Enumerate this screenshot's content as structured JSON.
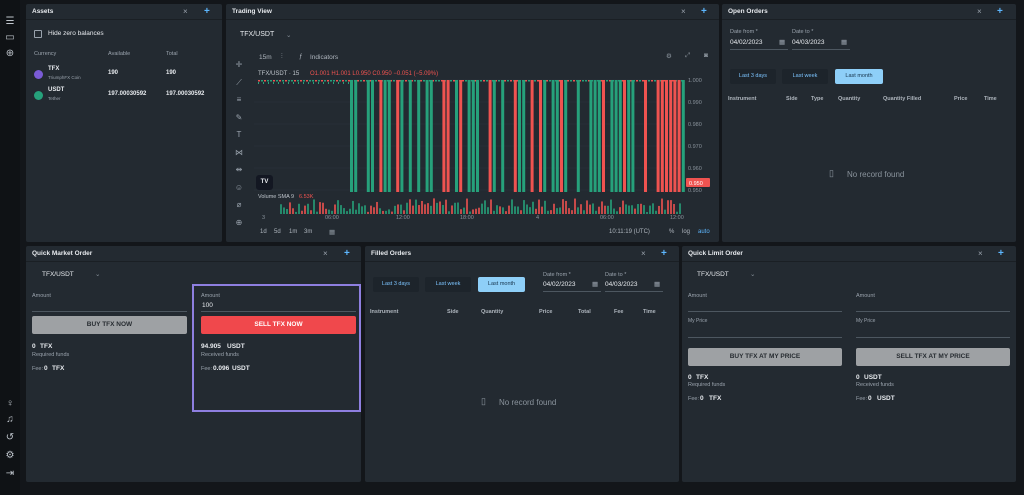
{
  "assets": {
    "title": "Assets",
    "hide_zero_label": "Hide zero balances",
    "columns": [
      "Currency",
      "Available",
      "Total"
    ],
    "rows": [
      {
        "symbol": "TFX",
        "name": "TriumphFX Coin",
        "available": "190",
        "total": "190"
      },
      {
        "symbol": "USDT",
        "name": "Tether",
        "available": "197.00030592",
        "total": "197.00030592"
      }
    ]
  },
  "trading_view": {
    "title": "Trading View",
    "pair": "TFX/USDT",
    "interval": "15m",
    "indicators_label": "Indicators",
    "legend_pair": "TFX/USDT · 15",
    "legend_ohlc": "O1.001 H1.001 L0.950 C0.950 −0.051 (−5.09%)",
    "volume_label": "Volume SMA 9",
    "volume_value": "6.53K",
    "price_ticks": [
      "1.000",
      "0.990",
      "0.980",
      "0.970",
      "0.960",
      "0.950"
    ],
    "price_tag": "0.950",
    "time_ticks": [
      "3",
      "06:00",
      "12:00",
      "18:00",
      "4",
      "06:00",
      "12:00"
    ],
    "ranges": [
      "1d",
      "5d",
      "1m",
      "3m"
    ],
    "clock": "10:11:19 (UTC)",
    "pct_label": "%",
    "log_label": "log",
    "auto_label": "auto",
    "logo": "TV"
  },
  "open_orders": {
    "title": "Open Orders",
    "date_from_label": "Date from *",
    "date_from": "04/02/2023",
    "date_to_label": "Date to *",
    "date_to": "04/03/2023",
    "tabs": [
      "Last 3 days",
      "Last week",
      "Last month"
    ],
    "columns": [
      "Instrument",
      "Side",
      "Type",
      "Quantity",
      "Quantity Filled",
      "Price",
      "Time"
    ],
    "empty": "No record found"
  },
  "quick_market": {
    "title": "Quick Market Order",
    "pair": "TFX/USDT",
    "buy": {
      "amount_label": "Amount",
      "amount": "",
      "button": "BUY TFX NOW",
      "funds_value": "0",
      "funds_unit": "TFX",
      "funds_label": "Required funds",
      "fee_label": "Fee:",
      "fee_value": "0",
      "fee_unit": "TFX"
    },
    "sell": {
      "amount_label": "Amount",
      "amount": "100",
      "button": "SELL TFX NOW",
      "funds_value": "94.905",
      "funds_unit": "USDT",
      "funds_label": "Received funds",
      "fee_label": "Fee:",
      "fee_value": "0.096",
      "fee_unit": "USDT"
    }
  },
  "filled_orders": {
    "title": "Filled Orders",
    "tabs": [
      "Last 3 days",
      "Last week",
      "Last month"
    ],
    "date_from_label": "Date from *",
    "date_from": "04/02/2023",
    "date_to_label": "Date to *",
    "date_to": "04/03/2023",
    "columns": [
      "Instrument",
      "Side",
      "Quantity",
      "Price",
      "Total",
      "Fee",
      "Time"
    ],
    "empty": "No record found"
  },
  "quick_limit": {
    "title": "Quick Limit Order",
    "pair": "TFX/USDT",
    "buy": {
      "amount_label": "Amount",
      "price_label": "My Price",
      "button": "BUY TFX AT MY PRICE",
      "funds_value": "0",
      "funds_unit": "TFX",
      "funds_label": "Required funds",
      "fee_label": "Fee:",
      "fee_value": "0",
      "fee_unit": "TFX"
    },
    "sell": {
      "amount_label": "Amount",
      "price_label": "My Price",
      "button": "SELL TFX AT MY PRICE",
      "funds_value": "0",
      "funds_unit": "USDT",
      "funds_label": "Received funds",
      "fee_label": "Fee:",
      "fee_value": "0",
      "fee_unit": "USDT"
    }
  },
  "colors": {
    "accent": "#5db7ff",
    "up": "#26a17b",
    "down": "#ef5350",
    "sell_button": "#f0484c",
    "highlight": "#8e7fe0"
  }
}
